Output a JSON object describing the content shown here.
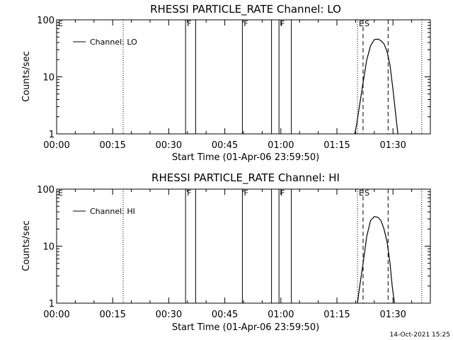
{
  "footer": {
    "timestamp": "14-Oct-2021 15:25"
  },
  "chart_data": [
    {
      "type": "line",
      "title": "RHESSI PARTICLE_RATE Channel: LO",
      "xlabel": "Start Time (01-Apr-06 23:59:50)",
      "ylabel": "Counts/sec",
      "yscale": "log",
      "ylim": [
        1,
        100
      ],
      "xlim_minutes": [
        0,
        100
      ],
      "x_ticks": [
        "00:00",
        "00:15",
        "00:30",
        "00:45",
        "01:00",
        "01:15",
        "01:30"
      ],
      "y_ticks": [
        "1",
        "10",
        "100"
      ],
      "legend": {
        "position": "top-left",
        "entries": [
          "Channel: LO"
        ]
      },
      "markers": [
        {
          "label": "E",
          "x": 0,
          "style": "none"
        },
        {
          "x": 17.8,
          "style": "dotted"
        },
        {
          "label": "F",
          "x": 34.5,
          "style": "solid"
        },
        {
          "x": 37.2,
          "style": "solid"
        },
        {
          "label": "F",
          "x": 49.7,
          "style": "solid"
        },
        {
          "x": 57.5,
          "style": "solid"
        },
        {
          "label": "F",
          "x": 59.5,
          "style": "solid"
        },
        {
          "x": 62.8,
          "style": "solid"
        },
        {
          "label": "E",
          "x": 80.5,
          "style": "dotted"
        },
        {
          "label": "S",
          "x": 82.0,
          "style": "dashed"
        },
        {
          "x": 88.7,
          "style": "dashed"
        },
        {
          "x": 97.7,
          "style": "dotted"
        }
      ],
      "series": [
        {
          "name": "Channel: LO",
          "x": [
            79.8,
            80.3,
            81.0,
            82.0,
            83.0,
            84.0,
            85.0,
            86.0,
            86.8,
            87.6,
            88.4,
            89.2,
            90.0,
            90.8,
            91.3
          ],
          "y": [
            1.0,
            1.5,
            3.0,
            8.0,
            20,
            35,
            45,
            46,
            43,
            38,
            28,
            16,
            6,
            2,
            1.0
          ]
        }
      ]
    },
    {
      "type": "line",
      "title": "RHESSI PARTICLE_RATE Channel: HI",
      "xlabel": "Start Time (01-Apr-06 23:59:50)",
      "ylabel": "Counts/sec",
      "yscale": "log",
      "ylim": [
        1,
        100
      ],
      "xlim_minutes": [
        0,
        100
      ],
      "x_ticks": [
        "00:00",
        "00:15",
        "00:30",
        "00:45",
        "01:00",
        "01:15",
        "01:30"
      ],
      "y_ticks": [
        "1",
        "10",
        "100"
      ],
      "legend": {
        "position": "top-left",
        "entries": [
          "Channel: HI"
        ]
      },
      "markers": [
        {
          "label": "E",
          "x": 0,
          "style": "none"
        },
        {
          "x": 17.8,
          "style": "dotted"
        },
        {
          "label": "F",
          "x": 34.5,
          "style": "solid"
        },
        {
          "x": 37.2,
          "style": "solid"
        },
        {
          "label": "F",
          "x": 49.7,
          "style": "solid"
        },
        {
          "x": 57.5,
          "style": "solid"
        },
        {
          "label": "F",
          "x": 59.5,
          "style": "solid"
        },
        {
          "x": 62.8,
          "style": "solid"
        },
        {
          "label": "E",
          "x": 80.5,
          "style": "dotted"
        },
        {
          "label": "S",
          "x": 82.0,
          "style": "dashed"
        },
        {
          "x": 88.7,
          "style": "dashed"
        },
        {
          "x": 97.7,
          "style": "dotted"
        }
      ],
      "series": [
        {
          "name": "Channel: HI",
          "x": [
            80.5,
            81.0,
            82.0,
            83.0,
            84.0,
            85.0,
            86.0,
            86.8,
            87.6,
            88.4,
            89.2,
            89.8,
            90.4
          ],
          "y": [
            1.0,
            1.8,
            5.0,
            15,
            28,
            33,
            32,
            28,
            20,
            12,
            5,
            2,
            1.0
          ]
        }
      ]
    }
  ]
}
